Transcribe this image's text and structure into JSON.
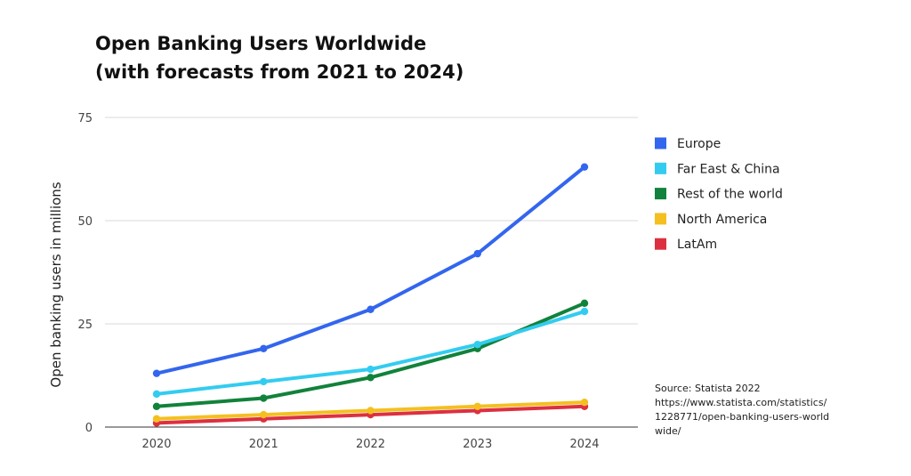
{
  "title": "Open Banking Users Worldwide",
  "subtitle": "(with forecasts from 2021 to 2024)",
  "source": {
    "line1": "Source: Statista 2022",
    "line2": "https://www.statista.com/statistics/1228771/open-banking-users-worldwide/"
  },
  "chart_data": {
    "type": "line",
    "ylabel": "Open banking users in millions",
    "xlabel": "",
    "ylim": [
      0,
      75
    ],
    "yticks": [
      0,
      25,
      50,
      75
    ],
    "x": [
      "2020",
      "2021",
      "2022",
      "2023",
      "2024"
    ],
    "grid": true,
    "legend_position": "right",
    "series": [
      {
        "name": "Europe",
        "color": "#3366ee",
        "values": [
          13,
          19,
          28.5,
          42,
          63
        ]
      },
      {
        "name": "Far East & China",
        "color": "#33ccf0",
        "values": [
          8,
          11,
          14,
          20,
          28
        ]
      },
      {
        "name": "Rest of the world",
        "color": "#11823b",
        "values": [
          5,
          7,
          12,
          19,
          30
        ]
      },
      {
        "name": "North America",
        "color": "#f4c020",
        "values": [
          2,
          3,
          4,
          5,
          6
        ]
      },
      {
        "name": "LatAm",
        "color": "#dc3040",
        "values": [
          1,
          2,
          3,
          4,
          5
        ]
      }
    ]
  }
}
